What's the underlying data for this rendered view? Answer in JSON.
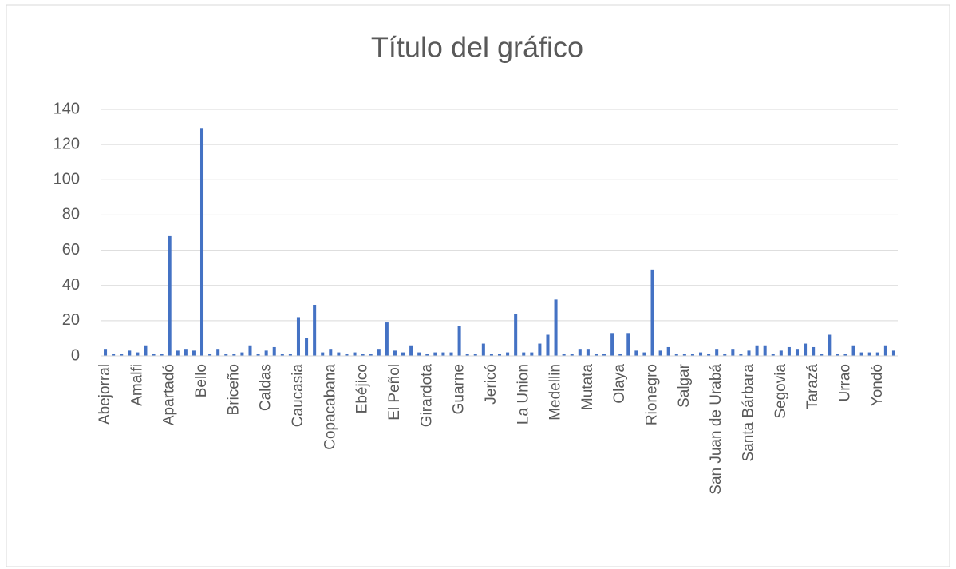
{
  "chart_data": {
    "type": "bar",
    "title": "Título del gráfico",
    "categories": [
      "Abejorral",
      null,
      null,
      null,
      "Amalfi",
      null,
      null,
      null,
      "Apartadó",
      null,
      null,
      null,
      "Bello",
      null,
      null,
      null,
      "Briceño",
      null,
      null,
      null,
      "Caldas",
      null,
      null,
      null,
      "Caucasia",
      null,
      null,
      null,
      "Copacabana",
      null,
      null,
      null,
      "Ebéjico",
      null,
      null,
      null,
      "El Peñol",
      null,
      null,
      null,
      "Girardota",
      null,
      null,
      null,
      "Guarne",
      null,
      null,
      null,
      "Jericó",
      null,
      null,
      null,
      "La Union",
      null,
      null,
      null,
      "Medellin",
      null,
      null,
      null,
      "Mutata",
      null,
      null,
      null,
      "Olaya",
      null,
      null,
      null,
      "Rionegro",
      null,
      null,
      null,
      "Salgar",
      null,
      null,
      null,
      "San Juan de Urabá",
      null,
      null,
      null,
      "Santa Bárbara",
      null,
      null,
      null,
      "Segovia",
      null,
      null,
      null,
      "Tarazá",
      null,
      null,
      null,
      "Urrao",
      null,
      null,
      null,
      "Yondó",
      null,
      null
    ],
    "values": [
      4,
      1,
      1,
      3,
      2,
      6,
      1,
      1,
      68,
      3,
      4,
      3,
      129,
      1,
      4,
      1,
      1,
      2,
      6,
      1,
      3,
      5,
      1,
      1,
      22,
      10,
      29,
      2,
      4,
      2,
      1,
      2,
      1,
      1,
      4,
      19,
      3,
      2,
      6,
      2,
      1,
      2,
      2,
      2,
      17,
      1,
      1,
      7,
      1,
      1,
      2,
      24,
      2,
      2,
      7,
      12,
      32,
      1,
      1,
      4,
      4,
      1,
      1,
      13,
      1,
      13,
      3,
      2,
      49,
      3,
      5,
      1,
      1,
      1,
      2,
      1,
      4,
      1,
      4,
      1,
      3,
      6,
      6,
      1,
      3,
      5,
      4,
      7,
      5,
      1,
      12,
      1,
      1,
      6,
      2,
      2,
      2,
      6,
      3
    ],
    "color": "#4472c4",
    "ylim": [
      0,
      140
    ],
    "yticks": [
      0,
      20,
      40,
      60,
      80,
      100,
      120,
      140
    ],
    "grid": true
  }
}
